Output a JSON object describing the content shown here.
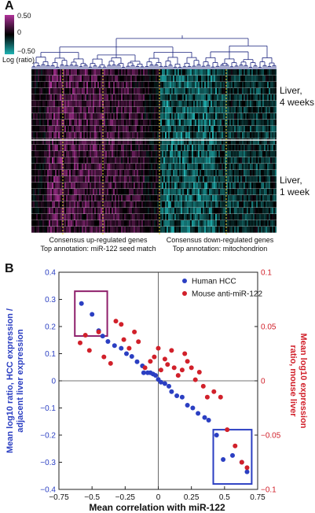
{
  "panel_a": {
    "letter": "A",
    "scale": {
      "max": "0.50",
      "mid": "0",
      "min": "−0.50",
      "caption": "Log (ratio)",
      "colors": {
        "high": "#b0329a",
        "zero": "#000000",
        "low": "#1fb3b3"
      }
    },
    "row_groups": [
      {
        "label_line1": "Liver,",
        "label_line2": "4 weeks"
      },
      {
        "label_line1": "Liver,",
        "label_line2": "1 week"
      }
    ],
    "annotations": [
      {
        "line1": "Consensus up-regulated genes",
        "line2": "Top annotation: miR-122 seed match"
      },
      {
        "line1": "Consensus down-regulated genes",
        "line2": "Top annotation: mitochondrion"
      }
    ]
  },
  "panel_b": {
    "letter": "B"
  },
  "chart_data": {
    "type": "scatter",
    "xlabel": "Mean correlation with miR-122",
    "ylabel_left": "Mean log10 ratio, HCC expression / adjacent liver expression",
    "ylabel_right": "Mean log10 expression ratio, mouse liver",
    "xlim": [
      -0.75,
      0.75
    ],
    "ylim_left": [
      -0.4,
      0.4
    ],
    "ylim_right": [
      -0.1,
      0.1
    ],
    "x_ticks": [
      "−0.75",
      "−0.5",
      "−0.25",
      "0",
      "0.25",
      "0.5",
      "0.75"
    ],
    "y_ticks_left": [
      "0.4",
      "0.3",
      "0.2",
      "0.1",
      "0",
      "−0.1",
      "−0.2",
      "−0.3",
      "−0.4"
    ],
    "y_ticks_right": [
      "0.1",
      "0.05",
      "0",
      "−0.05",
      "−0.1"
    ],
    "legend_position": "top-right",
    "series": [
      {
        "name": "Human HCC",
        "color": "#2b3fc2",
        "axis": "left",
        "points": [
          [
            -0.58,
            0.285
          ],
          [
            -0.5,
            0.245
          ],
          [
            -0.45,
            0.185
          ],
          [
            -0.42,
            0.165
          ],
          [
            -0.38,
            0.145
          ],
          [
            -0.33,
            0.13
          ],
          [
            -0.28,
            0.12
          ],
          [
            -0.24,
            0.1
          ],
          [
            -0.2,
            0.09
          ],
          [
            -0.16,
            0.07
          ],
          [
            -0.12,
            0.055
          ],
          [
            -0.11,
            0.03
          ],
          [
            -0.08,
            0.03
          ],
          [
            -0.06,
            0.03
          ],
          [
            -0.04,
            0.025
          ],
          [
            -0.02,
            0.02
          ],
          [
            0.0,
            0.005
          ],
          [
            0.02,
            -0.005
          ],
          [
            0.05,
            -0.01
          ],
          [
            0.08,
            -0.02
          ],
          [
            0.1,
            -0.04
          ],
          [
            0.14,
            -0.055
          ],
          [
            0.18,
            -0.06
          ],
          [
            0.22,
            -0.09
          ],
          [
            0.26,
            -0.1
          ],
          [
            0.3,
            -0.12
          ],
          [
            0.35,
            -0.135
          ],
          [
            0.38,
            -0.145
          ],
          [
            0.44,
            -0.2
          ],
          [
            0.49,
            -0.29
          ],
          [
            0.56,
            -0.275
          ],
          [
            0.63,
            -0.3
          ],
          [
            0.67,
            -0.335
          ]
        ]
      },
      {
        "name": "Mouse anti-miR-122",
        "color": "#d1202a",
        "axis": "right",
        "points": [
          [
            -0.59,
            0.035
          ],
          [
            -0.55,
            0.042
          ],
          [
            -0.52,
            0.028
          ],
          [
            -0.45,
            0.045
          ],
          [
            -0.41,
            0.022
          ],
          [
            -0.36,
            0.016
          ],
          [
            -0.32,
            0.055
          ],
          [
            -0.28,
            0.052
          ],
          [
            -0.26,
            0.038
          ],
          [
            -0.22,
            0.03
          ],
          [
            -0.18,
            0.045
          ],
          [
            -0.15,
            0.036
          ],
          [
            -0.1,
            0.012
          ],
          [
            -0.06,
            0.018
          ],
          [
            -0.03,
            0.022
          ],
          [
            0.0,
            0.03
          ],
          [
            0.02,
            0.01
          ],
          [
            0.05,
            0.02
          ],
          [
            0.07,
            0.015
          ],
          [
            0.1,
            0.028
          ],
          [
            0.12,
            0.012
          ],
          [
            0.15,
            0.005
          ],
          [
            0.18,
            0.01
          ],
          [
            0.2,
            0.025
          ],
          [
            0.22,
            0.018
          ],
          [
            0.25,
            0.012
          ],
          [
            0.28,
            0.001
          ],
          [
            0.31,
            0.008
          ],
          [
            0.34,
            -0.005
          ],
          [
            0.37,
            -0.015
          ],
          [
            0.42,
            -0.01
          ],
          [
            0.47,
            -0.015
          ],
          [
            0.52,
            -0.045
          ],
          [
            0.58,
            -0.06
          ],
          [
            0.63,
            -0.075
          ],
          [
            0.67,
            -0.08
          ]
        ]
      }
    ],
    "highlight_boxes": [
      {
        "color": "#8e1f6b",
        "x": [
          -0.63,
          -0.385
        ],
        "y_left": [
          0.165,
          0.33
        ]
      },
      {
        "color": "#2b3fc2",
        "x": [
          0.415,
          0.705
        ],
        "y_left": [
          -0.38,
          -0.18
        ]
      }
    ]
  }
}
